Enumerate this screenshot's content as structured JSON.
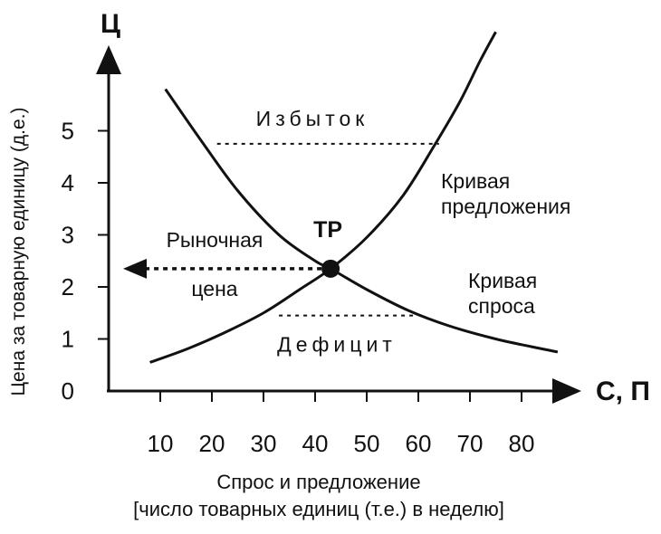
{
  "chart_data": {
    "type": "line",
    "title": "",
    "x_axis": {
      "letter": "С, П",
      "label_line1": "Спрос и предложение",
      "label_line2": "[число товарных единиц (т.е.) в неделю]",
      "ticks": [
        10,
        20,
        30,
        40,
        50,
        60,
        70,
        80
      ],
      "xlim": [
        0,
        90
      ]
    },
    "y_axis": {
      "letter": "Ц",
      "label": "Цена за товарную единицу (д.е.)",
      "ticks": [
        0,
        1,
        2,
        3,
        4,
        5
      ],
      "ylim": [
        0,
        6.7
      ]
    },
    "series": [
      {
        "name": "Кривая предложения",
        "label_lines": [
          "Кривая",
          "предложения"
        ],
        "x": [
          8,
          15,
          22,
          30,
          37,
          43,
          50,
          57,
          63,
          68,
          72,
          75
        ],
        "y": [
          0.55,
          0.8,
          1.1,
          1.5,
          1.95,
          2.35,
          2.95,
          3.75,
          4.7,
          5.55,
          6.35,
          6.9
        ]
      },
      {
        "name": "Кривая спроса",
        "label_lines": [
          "Кривая",
          "спроса"
        ],
        "x": [
          11,
          18,
          25,
          33,
          40,
          43,
          50,
          58,
          66,
          75,
          82,
          87
        ],
        "y": [
          5.8,
          4.8,
          3.85,
          3.0,
          2.5,
          2.35,
          1.95,
          1.55,
          1.25,
          1.0,
          0.85,
          0.75
        ]
      }
    ],
    "equilibrium": {
      "label": "ТР",
      "x": 43,
      "y": 2.35
    },
    "market_price": {
      "label_line1": "Рыночная",
      "label_line2": "цена",
      "y": 2.35
    },
    "surplus": {
      "label": "Избыток",
      "y": 4.75,
      "x_from": 21,
      "x_to": 64
    },
    "deficit": {
      "label": "Дефицит",
      "y": 1.45,
      "x_from": 33,
      "x_to": 59
    }
  }
}
